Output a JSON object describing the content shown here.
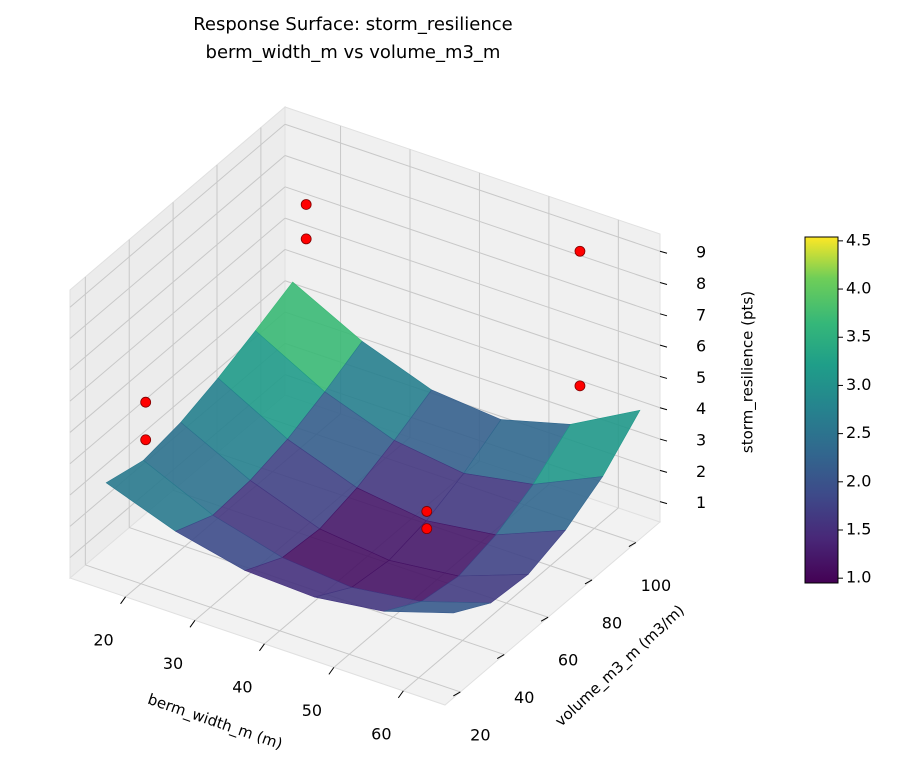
{
  "chart_data": {
    "type": "surface",
    "title": "Response Surface: storm_resilience",
    "subtitle": "berm_width_m vs volume_m3_m",
    "xlabel": "berm_width_m (m)",
    "ylabel": "volume_m3_m (m3/m)",
    "zlabel": "storm_resilience (pts)",
    "xlim": [
      12,
      66
    ],
    "ylim": [
      13,
      111
    ],
    "zlim": [
      0.35,
      9.55
    ],
    "xticks": [
      20,
      30,
      40,
      50,
      60
    ],
    "yticks": [
      20,
      40,
      60,
      80,
      100
    ],
    "zticks": [
      1,
      2,
      3,
      4,
      5,
      6,
      7,
      8,
      9
    ],
    "colormap": "viridis",
    "clim": [
      0.95,
      4.54
    ],
    "cticks": [
      {
        "value": 1,
        "label": "1.0"
      },
      {
        "value": 1.5,
        "label": "1.5"
      },
      {
        "value": 2,
        "label": "2.0"
      },
      {
        "value": 2.5,
        "label": "2.5"
      },
      {
        "value": 3,
        "label": "3.0"
      },
      {
        "value": 3.5,
        "label": "3.5"
      },
      {
        "value": 4,
        "label": "4.0"
      },
      {
        "value": 4.5,
        "label": "4.5"
      }
    ],
    "surface": {
      "x": [
        15,
        25,
        35,
        45,
        55,
        65
      ],
      "y": [
        20,
        37,
        54,
        71,
        88,
        105
      ],
      "z": [
        [
          3.2,
          2.4,
          1.9,
          1.8,
          2.1,
          2.8
        ],
        [
          2.9,
          1.9,
          1.3,
          1.1,
          1.4,
          2.1
        ],
        [
          3.1,
          2.0,
          1.2,
          0.95,
          1.2,
          2.0
        ],
        [
          3.5,
          2.3,
          1.5,
          1.2,
          1.5,
          2.4
        ],
        [
          4.0,
          2.8,
          2.0,
          1.7,
          2.1,
          3.1
        ],
        [
          4.54,
          3.4,
          2.6,
          2.4,
          3.0,
          4.2
        ]
      ]
    },
    "points": {
      "color": "#ff0000",
      "x": [
        22,
        22,
        15,
        15,
        57,
        57,
        46,
        46
      ],
      "y": [
        89,
        89,
        38,
        38,
        103,
        103,
        68,
        68
      ],
      "z": [
        7.4,
        8.5,
        3.5,
        4.7,
        4.5,
        8.8,
        1.2,
        1.75
      ]
    }
  }
}
